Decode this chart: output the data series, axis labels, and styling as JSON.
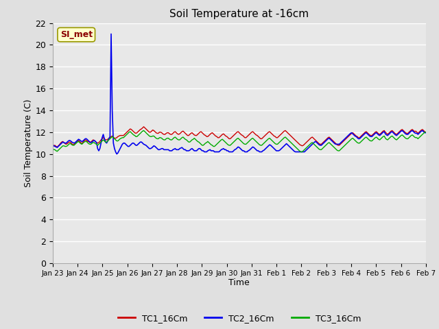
{
  "title": "Soil Temperature at -16cm",
  "xlabel": "Time",
  "ylabel": "Soil Temperature (C)",
  "ylim": [
    0,
    22
  ],
  "yticks": [
    0,
    2,
    4,
    6,
    8,
    10,
    12,
    14,
    16,
    18,
    20,
    22
  ],
  "background_color": "#e8e8e8",
  "legend_label": "SI_met",
  "series": {
    "TC1_16Cm": {
      "color": "#cc0000",
      "linewidth": 1.0
    },
    "TC2_16Cm": {
      "color": "#0000ee",
      "linewidth": 1.2
    },
    "TC3_16Cm": {
      "color": "#00aa00",
      "linewidth": 1.0
    }
  },
  "x_tick_labels": [
    "Jan 23",
    "Jan 24",
    "Jan 25",
    "Jan 26",
    "Jan 27",
    "Jan 28",
    "Jan 29",
    "Jan 30",
    "Jan 31",
    "Feb 1",
    "Feb 2",
    "Feb 3",
    "Feb 4",
    "Feb 5",
    "Feb 6",
    "Feb 7"
  ],
  "TC1_values": [
    10.9,
    10.75,
    10.8,
    10.7,
    10.65,
    10.75,
    10.85,
    11.0,
    11.1,
    11.15,
    11.05,
    10.95,
    10.9,
    10.95,
    11.05,
    11.1,
    11.05,
    10.95,
    10.85,
    10.9,
    11.0,
    11.1,
    11.2,
    11.25,
    11.15,
    11.05,
    10.95,
    11.1,
    11.2,
    11.3,
    11.25,
    11.15,
    11.15,
    11.05,
    11.1,
    11.2,
    11.3,
    11.25,
    11.15,
    11.05,
    11.0,
    11.05,
    11.15,
    11.3,
    11.4,
    11.5,
    11.4,
    11.3,
    11.3,
    11.35,
    11.45,
    11.5,
    11.6,
    11.65,
    11.55,
    11.45,
    11.45,
    11.5,
    11.6,
    11.65,
    11.7,
    11.7,
    11.7,
    11.7,
    11.8,
    11.9,
    12.0,
    12.1,
    12.2,
    12.3,
    12.25,
    12.15,
    12.05,
    11.95,
    11.9,
    11.95,
    12.05,
    12.15,
    12.25,
    12.3,
    12.4,
    12.5,
    12.4,
    12.3,
    12.2,
    12.1,
    12.0,
    12.0,
    12.1,
    12.2,
    12.15,
    12.05,
    11.95,
    11.9,
    11.9,
    12.0,
    12.0,
    11.95,
    11.85,
    11.8,
    11.8,
    11.9,
    11.95,
    11.95,
    11.85,
    11.8,
    11.8,
    11.9,
    12.0,
    12.05,
    11.95,
    11.85,
    11.8,
    11.85,
    11.95,
    12.05,
    12.1,
    12.0,
    11.9,
    11.8,
    11.7,
    11.7,
    11.8,
    11.9,
    11.95,
    11.85,
    11.75,
    11.7,
    11.7,
    11.8,
    11.9,
    12.0,
    12.05,
    11.95,
    11.85,
    11.75,
    11.7,
    11.6,
    11.6,
    11.7,
    11.8,
    11.9,
    11.95,
    11.85,
    11.75,
    11.65,
    11.6,
    11.5,
    11.5,
    11.6,
    11.7,
    11.8,
    11.85,
    11.75,
    11.65,
    11.6,
    11.5,
    11.4,
    11.4,
    11.5,
    11.6,
    11.7,
    11.8,
    11.9,
    12.0,
    12.05,
    11.95,
    11.85,
    11.75,
    11.7,
    11.6,
    11.5,
    11.5,
    11.6,
    11.7,
    11.8,
    11.9,
    12.0,
    12.05,
    11.95,
    11.85,
    11.75,
    11.7,
    11.6,
    11.5,
    11.4,
    11.4,
    11.5,
    11.6,
    11.7,
    11.8,
    11.9,
    12.0,
    12.05,
    11.95,
    11.85,
    11.75,
    11.65,
    11.6,
    11.5,
    11.5,
    11.6,
    11.7,
    11.8,
    11.9,
    12.0,
    12.1,
    12.15,
    12.05,
    11.95,
    11.85,
    11.75,
    11.65,
    11.55,
    11.45,
    11.35,
    11.25,
    11.15,
    11.05,
    10.95,
    10.85,
    10.8,
    10.75,
    10.8,
    10.9,
    11.0,
    11.1,
    11.2,
    11.3,
    11.4,
    11.5,
    11.55,
    11.45,
    11.35,
    11.25,
    11.15,
    11.05,
    10.95,
    10.9,
    10.9,
    11.0,
    11.1,
    11.2,
    11.3,
    11.4,
    11.5,
    11.55,
    11.45,
    11.35,
    11.25,
    11.15,
    11.05,
    10.95,
    10.85,
    10.8,
    10.8,
    10.9,
    11.0,
    11.1,
    11.2,
    11.3,
    11.4,
    11.5,
    11.6,
    11.7,
    11.8,
    11.9,
    11.95,
    11.85,
    11.75,
    11.65,
    11.6,
    11.5,
    11.5,
    11.6,
    11.7,
    11.8,
    11.9,
    12.0,
    12.05,
    11.95,
    11.85,
    11.75,
    11.7,
    11.7,
    11.8,
    11.9,
    12.0,
    12.05,
    11.95,
    11.85,
    11.8,
    11.9,
    12.0,
    12.1,
    12.15,
    12.0,
    11.9,
    11.8,
    11.9,
    12.0,
    12.1,
    12.15,
    12.05,
    11.95,
    11.85,
    11.8,
    11.9,
    12.0,
    12.1,
    12.2,
    12.25,
    12.15,
    12.05,
    11.95,
    11.9,
    11.9,
    12.0,
    12.1,
    12.2,
    12.25,
    12.15,
    12.05,
    12.1,
    12.0,
    11.9,
    12.0,
    12.1,
    12.2,
    12.25,
    12.15,
    12.05,
    12.0
  ],
  "TC2_values": [
    10.85,
    10.75,
    10.7,
    10.65,
    10.6,
    10.7,
    10.8,
    10.9,
    11.0,
    11.1,
    11.05,
    11.0,
    11.0,
    11.1,
    11.2,
    11.25,
    11.2,
    11.1,
    11.05,
    11.0,
    11.05,
    11.15,
    11.25,
    11.35,
    11.3,
    11.2,
    11.15,
    11.2,
    11.3,
    11.4,
    11.4,
    11.3,
    11.2,
    11.1,
    11.05,
    11.1,
    11.2,
    11.25,
    11.15,
    11.05,
    10.5,
    10.3,
    10.5,
    11.0,
    11.5,
    11.8,
    11.4,
    11.1,
    11.0,
    11.2,
    11.4,
    11.6,
    21.0,
    14.0,
    11.0,
    10.5,
    10.2,
    10.0,
    10.1,
    10.3,
    10.5,
    10.7,
    10.9,
    11.0,
    11.0,
    10.9,
    10.8,
    10.7,
    10.7,
    10.8,
    10.9,
    11.0,
    11.0,
    10.9,
    10.8,
    10.8,
    10.9,
    11.0,
    11.1,
    11.1,
    11.0,
    10.9,
    10.85,
    10.8,
    10.7,
    10.6,
    10.5,
    10.5,
    10.55,
    10.65,
    10.75,
    10.7,
    10.6,
    10.5,
    10.4,
    10.4,
    10.45,
    10.5,
    10.5,
    10.4,
    10.4,
    10.4,
    10.4,
    10.4,
    10.3,
    10.3,
    10.3,
    10.4,
    10.45,
    10.5,
    10.4,
    10.4,
    10.4,
    10.5,
    10.55,
    10.6,
    10.5,
    10.4,
    10.4,
    10.3,
    10.3,
    10.3,
    10.35,
    10.45,
    10.5,
    10.4,
    10.3,
    10.3,
    10.3,
    10.4,
    10.5,
    10.5,
    10.4,
    10.3,
    10.3,
    10.2,
    10.2,
    10.2,
    10.3,
    10.35,
    10.4,
    10.3,
    10.3,
    10.3,
    10.2,
    10.2,
    10.2,
    10.2,
    10.2,
    10.3,
    10.4,
    10.45,
    10.5,
    10.4,
    10.4,
    10.3,
    10.3,
    10.2,
    10.2,
    10.2,
    10.2,
    10.3,
    10.4,
    10.45,
    10.55,
    10.65,
    10.6,
    10.5,
    10.4,
    10.3,
    10.3,
    10.2,
    10.2,
    10.2,
    10.3,
    10.35,
    10.45,
    10.55,
    10.65,
    10.6,
    10.5,
    10.4,
    10.3,
    10.3,
    10.2,
    10.2,
    10.2,
    10.3,
    10.35,
    10.45,
    10.55,
    10.65,
    10.75,
    10.85,
    10.8,
    10.7,
    10.6,
    10.5,
    10.4,
    10.3,
    10.3,
    10.3,
    10.35,
    10.45,
    10.55,
    10.65,
    10.75,
    10.85,
    10.95,
    10.85,
    10.75,
    10.65,
    10.55,
    10.45,
    10.35,
    10.25,
    10.2,
    10.2,
    10.2,
    10.2,
    10.2,
    10.2,
    10.2,
    10.2,
    10.2,
    10.3,
    10.4,
    10.5,
    10.6,
    10.7,
    10.8,
    10.9,
    11.0,
    11.1,
    11.15,
    11.05,
    10.95,
    10.85,
    10.8,
    10.8,
    10.9,
    11.0,
    11.1,
    11.2,
    11.3,
    11.4,
    11.45,
    11.35,
    11.25,
    11.15,
    11.05,
    10.95,
    10.9,
    10.9,
    10.9,
    10.9,
    11.0,
    11.1,
    11.2,
    11.3,
    11.4,
    11.5,
    11.6,
    11.7,
    11.8,
    11.9,
    11.95,
    11.85,
    11.75,
    11.65,
    11.6,
    11.5,
    11.4,
    11.4,
    11.5,
    11.6,
    11.7,
    11.8,
    11.9,
    11.95,
    11.85,
    11.75,
    11.65,
    11.6,
    11.6,
    11.7,
    11.8,
    11.9,
    11.95,
    11.85,
    11.75,
    11.7,
    11.8,
    11.9,
    12.0,
    12.05,
    11.85,
    11.75,
    11.7,
    11.8,
    11.9,
    12.0,
    12.05,
    11.95,
    11.85,
    11.75,
    11.7,
    11.8,
    11.9,
    12.0,
    12.1,
    12.15,
    12.05,
    11.95,
    11.85,
    11.8,
    11.8,
    11.9,
    12.0,
    12.1,
    12.15,
    12.05,
    11.95,
    11.9,
    11.9,
    11.8,
    11.9,
    12.0,
    12.1,
    12.15,
    12.05,
    11.95,
    11.95
  ],
  "TC3_values": [
    10.5,
    10.4,
    10.4,
    10.3,
    10.25,
    10.35,
    10.45,
    10.55,
    10.65,
    10.75,
    10.75,
    10.7,
    10.7,
    10.75,
    10.85,
    10.95,
    10.95,
    10.85,
    10.8,
    10.8,
    10.9,
    11.0,
    11.1,
    11.15,
    11.05,
    10.95,
    10.9,
    11.0,
    11.1,
    11.15,
    11.15,
    11.05,
    10.95,
    10.9,
    10.9,
    11.0,
    11.05,
    11.05,
    10.95,
    10.9,
    10.8,
    10.9,
    11.0,
    11.1,
    11.2,
    11.3,
    11.2,
    11.1,
    11.1,
    11.2,
    11.3,
    11.4,
    11.5,
    11.6,
    11.5,
    11.4,
    11.3,
    11.2,
    11.2,
    11.3,
    11.4,
    11.45,
    11.5,
    11.5,
    11.6,
    11.7,
    11.8,
    11.9,
    12.0,
    12.05,
    11.95,
    11.85,
    11.75,
    11.7,
    11.6,
    11.6,
    11.7,
    11.8,
    11.9,
    12.0,
    12.1,
    12.15,
    12.05,
    11.95,
    11.85,
    11.75,
    11.65,
    11.6,
    11.6,
    11.65,
    11.65,
    11.55,
    11.45,
    11.4,
    11.4,
    11.5,
    11.5,
    11.45,
    11.35,
    11.3,
    11.3,
    11.4,
    11.45,
    11.45,
    11.35,
    11.3,
    11.3,
    11.4,
    11.5,
    11.55,
    11.45,
    11.35,
    11.3,
    11.3,
    11.4,
    11.5,
    11.55,
    11.45,
    11.35,
    11.3,
    11.2,
    11.1,
    11.1,
    11.2,
    11.3,
    11.35,
    11.45,
    11.35,
    11.25,
    11.15,
    11.1,
    11.0,
    10.9,
    10.8,
    10.8,
    10.9,
    11.0,
    11.05,
    11.15,
    11.05,
    10.95,
    10.85,
    10.8,
    10.7,
    10.7,
    10.8,
    10.9,
    11.0,
    11.1,
    11.2,
    11.3,
    11.35,
    11.25,
    11.15,
    11.05,
    10.95,
    10.85,
    10.8,
    10.8,
    10.9,
    11.0,
    11.1,
    11.2,
    11.3,
    11.4,
    11.45,
    11.35,
    11.25,
    11.15,
    11.05,
    10.95,
    10.9,
    10.9,
    11.0,
    11.1,
    11.2,
    11.3,
    11.4,
    11.45,
    11.35,
    11.25,
    11.15,
    11.05,
    10.95,
    10.85,
    10.8,
    10.8,
    10.9,
    11.0,
    11.1,
    11.2,
    11.3,
    11.4,
    11.45,
    11.35,
    11.25,
    11.15,
    11.05,
    10.95,
    10.9,
    10.9,
    11.0,
    11.1,
    11.2,
    11.3,
    11.4,
    11.5,
    11.55,
    11.45,
    11.35,
    11.25,
    11.15,
    11.05,
    10.95,
    10.85,
    10.75,
    10.65,
    10.55,
    10.45,
    10.35,
    10.25,
    10.2,
    10.2,
    10.3,
    10.4,
    10.5,
    10.6,
    10.7,
    10.8,
    10.9,
    11.0,
    11.05,
    10.95,
    10.85,
    10.75,
    10.65,
    10.55,
    10.45,
    10.4,
    10.4,
    10.5,
    10.6,
    10.7,
    10.8,
    10.9,
    11.0,
    11.05,
    10.95,
    10.85,
    10.75,
    10.65,
    10.55,
    10.45,
    10.35,
    10.3,
    10.3,
    10.4,
    10.5,
    10.6,
    10.7,
    10.8,
    10.9,
    11.0,
    11.1,
    11.2,
    11.3,
    11.4,
    11.45,
    11.35,
    11.25,
    11.15,
    11.05,
    11.0,
    11.0,
    11.1,
    11.2,
    11.3,
    11.4,
    11.5,
    11.55,
    11.45,
    11.35,
    11.25,
    11.2,
    11.2,
    11.3,
    11.4,
    11.5,
    11.55,
    11.45,
    11.35,
    11.3,
    11.4,
    11.5,
    11.6,
    11.65,
    11.45,
    11.35,
    11.3,
    11.4,
    11.5,
    11.6,
    11.65,
    11.55,
    11.45,
    11.35,
    11.3,
    11.4,
    11.5,
    11.6,
    11.7,
    11.75,
    11.65,
    11.55,
    11.45,
    11.4,
    11.4,
    11.5,
    11.6,
    11.7,
    11.75,
    11.65,
    11.55,
    11.5,
    11.5,
    11.4,
    11.5,
    11.6,
    11.7,
    11.8,
    11.9,
    12.0,
    12.0
  ]
}
